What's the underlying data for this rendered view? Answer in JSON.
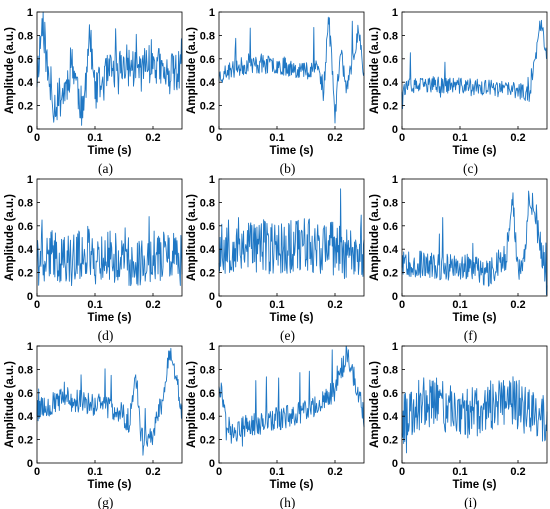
{
  "colors": {
    "series": "#1f77c4",
    "axis": "#000000"
  },
  "chart_data": [
    {
      "type": "line",
      "panel_label": "(a)",
      "xlabel": "Time (s)",
      "ylabel": "Amplitude (a.u.)",
      "xlim": [
        0,
        0.25
      ],
      "ylim": [
        0,
        1
      ],
      "xticks": [
        0,
        0.1,
        0.2
      ],
      "yticks": [
        0,
        0.2,
        0.4,
        0.6,
        0.8,
        1
      ],
      "series": [
        {
          "anchors_x": [
            0,
            0.01,
            0.02,
            0.03,
            0.05,
            0.06,
            0.08,
            0.09,
            0.1,
            0.12,
            0.15,
            0.18,
            0.2,
            0.22,
            0.25
          ],
          "anchors_y": [
            0.45,
            0.95,
            0.4,
            0.2,
            0.35,
            0.6,
            0.1,
            0.85,
            0.3,
            0.45,
            0.55,
            0.5,
            0.6,
            0.45,
            0.5
          ],
          "noise": 0.18,
          "seed": 11
        }
      ]
    },
    {
      "type": "line",
      "panel_label": "(b)",
      "xlabel": "Time (s)",
      "ylabel": "Amplitude (a.u.)",
      "xlim": [
        0,
        0.25
      ],
      "ylim": [
        0,
        1
      ],
      "xticks": [
        0,
        0.1,
        0.2
      ],
      "yticks": [
        0,
        0.2,
        0.4,
        0.6,
        0.8,
        1
      ],
      "series": [
        {
          "anchors_x": [
            0,
            0.02,
            0.05,
            0.1,
            0.15,
            0.17,
            0.18,
            0.19,
            0.2,
            0.21,
            0.22,
            0.24,
            0.25
          ],
          "anchors_y": [
            0.45,
            0.5,
            0.55,
            0.55,
            0.5,
            0.55,
            0.3,
            1.0,
            0.1,
            0.7,
            0.3,
            0.85,
            0.5
          ],
          "noise": 0.08,
          "seed": 23
        }
      ]
    },
    {
      "type": "line",
      "panel_label": "(c)",
      "xlabel": "Time (s)",
      "ylabel": "Amplitude (a.u.)",
      "xlim": [
        0,
        0.25
      ],
      "ylim": [
        0,
        1
      ],
      "xticks": [
        0,
        0.1,
        0.2
      ],
      "yticks": [
        0,
        0.2,
        0.4,
        0.6,
        0.8,
        1
      ],
      "series": [
        {
          "anchors_x": [
            0,
            0.05,
            0.1,
            0.15,
            0.2,
            0.22,
            0.23,
            0.24,
            0.25
          ],
          "anchors_y": [
            0.35,
            0.38,
            0.37,
            0.35,
            0.33,
            0.3,
            0.6,
            0.95,
            0.6
          ],
          "noise": 0.07,
          "seed": 37
        }
      ]
    },
    {
      "type": "line",
      "panel_label": "(d)",
      "xlabel": "Time (s)",
      "ylabel": "Amplitude (a.u.)",
      "xlim": [
        0,
        0.25
      ],
      "ylim": [
        0,
        1
      ],
      "xticks": [
        0,
        0.1,
        0.2
      ],
      "yticks": [
        0,
        0.2,
        0.4,
        0.6,
        0.8,
        1
      ],
      "series": [
        {
          "anchors_x": [
            0,
            0.03,
            0.06,
            0.09,
            0.1,
            0.12,
            0.15,
            0.18,
            0.21,
            0.25
          ],
          "anchors_y": [
            0.3,
            0.35,
            0.3,
            0.4,
            0.3,
            0.35,
            0.3,
            0.3,
            0.35,
            0.3
          ],
          "noise": 0.22,
          "seed": 41
        }
      ]
    },
    {
      "type": "line",
      "panel_label": "(e)",
      "xlabel": "Time (s)",
      "ylabel": "Amplitude (a.u.)",
      "xlim": [
        0,
        0.25
      ],
      "ylim": [
        0,
        1
      ],
      "xticks": [
        0,
        0.1,
        0.2
      ],
      "yticks": [
        0,
        0.2,
        0.4,
        0.6,
        0.8,
        1
      ],
      "series": [
        {
          "anchors_x": [
            0,
            0.05,
            0.1,
            0.15,
            0.2,
            0.25
          ],
          "anchors_y": [
            0.4,
            0.45,
            0.4,
            0.45,
            0.4,
            0.35
          ],
          "noise": 0.24,
          "seed": 53
        }
      ]
    },
    {
      "type": "line",
      "panel_label": "(f)",
      "xlabel": "Time (s)",
      "ylabel": "Amplitude (a.u.)",
      "xlim": [
        0,
        0.25
      ],
      "ylim": [
        0,
        1
      ],
      "xticks": [
        0,
        0.1,
        0.2
      ],
      "yticks": [
        0,
        0.2,
        0.4,
        0.6,
        0.8,
        1
      ],
      "series": [
        {
          "anchors_x": [
            0,
            0.05,
            0.1,
            0.15,
            0.18,
            0.19,
            0.2,
            0.21,
            0.22,
            0.25
          ],
          "anchors_y": [
            0.3,
            0.25,
            0.25,
            0.2,
            0.35,
            0.9,
            0.2,
            0.3,
            0.9,
            0.15
          ],
          "noise": 0.12,
          "seed": 67
        }
      ]
    },
    {
      "type": "line",
      "panel_label": "(g)",
      "xlabel": "Time (s)",
      "ylabel": "Amplitude (a.u.)",
      "xlim": [
        0,
        0.25
      ],
      "ylim": [
        0,
        1
      ],
      "xticks": [
        0,
        0.1,
        0.2
      ],
      "yticks": [
        0,
        0.2,
        0.4,
        0.6,
        0.8,
        1
      ],
      "series": [
        {
          "anchors_x": [
            0,
            0.05,
            0.1,
            0.14,
            0.16,
            0.17,
            0.18,
            0.2,
            0.22,
            0.23,
            0.25
          ],
          "anchors_y": [
            0.45,
            0.55,
            0.5,
            0.45,
            0.35,
            0.8,
            0.2,
            0.25,
            0.6,
            1.0,
            0.45
          ],
          "noise": 0.1,
          "seed": 79
        }
      ]
    },
    {
      "type": "line",
      "panel_label": "(h)",
      "xlabel": "Time (s)",
      "ylabel": "Amplitude (a.u.)",
      "xlim": [
        0,
        0.25
      ],
      "ylim": [
        0,
        1
      ],
      "xticks": [
        0,
        0.1,
        0.2
      ],
      "yticks": [
        0,
        0.2,
        0.4,
        0.6,
        0.8,
        1
      ],
      "series": [
        {
          "anchors_x": [
            0,
            0.02,
            0.04,
            0.08,
            0.12,
            0.16,
            0.18,
            0.2,
            0.22,
            0.24,
            0.25
          ],
          "anchors_y": [
            0.7,
            0.25,
            0.3,
            0.35,
            0.4,
            0.45,
            0.55,
            0.6,
            0.95,
            0.6,
            0.4
          ],
          "noise": 0.1,
          "seed": 97
        }
      ]
    },
    {
      "type": "line",
      "panel_label": "(i)",
      "xlabel": "Time (s)",
      "ylabel": "Amplitude (a.u.)",
      "xlim": [
        0,
        0.25
      ],
      "ylim": [
        0,
        1
      ],
      "xticks": [
        0,
        0.1,
        0.2
      ],
      "yticks": [
        0,
        0.2,
        0.4,
        0.6,
        0.8,
        1
      ],
      "series": [
        {
          "anchors_x": [
            0,
            0.03,
            0.06,
            0.1,
            0.14,
            0.18,
            0.2,
            0.22,
            0.25
          ],
          "anchors_y": [
            0.35,
            0.5,
            0.55,
            0.4,
            0.45,
            0.55,
            0.5,
            0.45,
            0.35
          ],
          "noise": 0.22,
          "seed": 113
        }
      ]
    }
  ]
}
